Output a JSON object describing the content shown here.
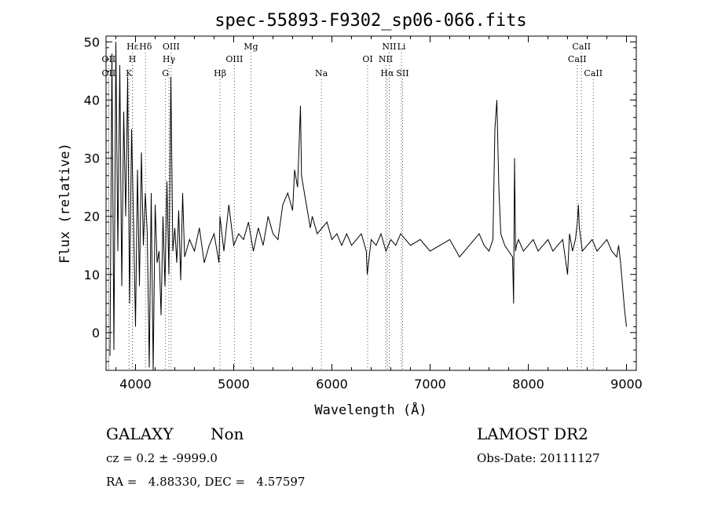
{
  "chart_data": {
    "type": "line",
    "title": "spec-55893-F9302_sp06-066.fits",
    "xlabel": "Wavelength (Å)",
    "ylabel": "Flux (relative)",
    "xlim": [
      3700,
      9100
    ],
    "ylim": [
      -6.5,
      51
    ],
    "x_ticks": [
      4000,
      5000,
      6000,
      7000,
      8000,
      9000
    ],
    "y_ticks": [
      0,
      10,
      20,
      30,
      40,
      50
    ],
    "grid": false,
    "line_color": "#000000",
    "marker_color": "#555555",
    "series": [
      {
        "x": [
          3740,
          3760,
          3780,
          3800,
          3820,
          3840,
          3860,
          3880,
          3900,
          3920,
          3940,
          3960,
          3980,
          4000,
          4020,
          4040,
          4060,
          4080,
          4100,
          4120,
          4140,
          4160,
          4180,
          4200,
          4220,
          4240,
          4260,
          4280,
          4300,
          4320,
          4340,
          4360,
          4380,
          4400,
          4420,
          4440,
          4460,
          4480,
          4500,
          4550,
          4600,
          4650,
          4700,
          4750,
          4800,
          4850,
          4860,
          4900,
          4950,
          5000,
          5050,
          5100,
          5150,
          5200,
          5250,
          5300,
          5350,
          5400,
          5450,
          5500,
          5550,
          5600,
          5620,
          5650,
          5680,
          5690,
          5700,
          5720,
          5750,
          5780,
          5800,
          5850,
          5900,
          5950,
          6000,
          6050,
          6100,
          6150,
          6200,
          6250,
          6300,
          6350,
          6360,
          6400,
          6450,
          6500,
          6550,
          6600,
          6650,
          6700,
          6750,
          6800,
          6900,
          7000,
          7100,
          7200,
          7300,
          7400,
          7500,
          7550,
          7600,
          7640,
          7660,
          7680,
          7700,
          7720,
          7740,
          7760,
          7800,
          7840,
          7850,
          7860,
          7870,
          7880,
          7900,
          7950,
          8000,
          8050,
          8100,
          8150,
          8200,
          8250,
          8300,
          8350,
          8400,
          8420,
          8450,
          8480,
          8500,
          8510,
          8520,
          8550,
          8600,
          8650,
          8700,
          8750,
          8800,
          8850,
          8900,
          8920,
          8940,
          8960,
          8980,
          9000
        ],
        "y": [
          -4,
          48,
          -3,
          50,
          14,
          46,
          8,
          38,
          20,
          44,
          5,
          35,
          19,
          1,
          28,
          8,
          31,
          15,
          24,
          17,
          -6,
          24,
          -7,
          22,
          12,
          14,
          3,
          20,
          8,
          26,
          10,
          44,
          14,
          18,
          12,
          21,
          9,
          24,
          13,
          16,
          14,
          18,
          12,
          15,
          17,
          12,
          20,
          14,
          22,
          15,
          17,
          16,
          19,
          14,
          18,
          15,
          20,
          17,
          16,
          22,
          24,
          21,
          28,
          25,
          39,
          27,
          26,
          24,
          21,
          18,
          20,
          17,
          18,
          19,
          16,
          17,
          15,
          17,
          15,
          16,
          17,
          14,
          10,
          16,
          15,
          17,
          14,
          16,
          15,
          17,
          16,
          15,
          16,
          14,
          15,
          16,
          13,
          15,
          17,
          15,
          14,
          16,
          35,
          40,
          25,
          17,
          16,
          15,
          14,
          13,
          5,
          30,
          14,
          15,
          16,
          14,
          15,
          16,
          14,
          15,
          16,
          14,
          15,
          16,
          10,
          17,
          14,
          16,
          19,
          22,
          18,
          14,
          15,
          16,
          14,
          15,
          16,
          14,
          13,
          15,
          12,
          8,
          4,
          1
        ]
      }
    ],
    "emission_lines": {
      "row1": [
        {
          "label": "Hε",
          "x": 3970
        },
        {
          "label": "Hδ",
          "x": 4102
        },
        {
          "label": "OIII",
          "x": 4363
        },
        {
          "label": "Mg",
          "x": 5175
        },
        {
          "label": "NII",
          "x": 6584
        },
        {
          "label": "Li",
          "x": 6708
        },
        {
          "label": "CaII",
          "x": 8542
        }
      ],
      "row2": [
        {
          "label": "OII",
          "x": 3727
        },
        {
          "label": "H",
          "x": 3968
        },
        {
          "label": "Hγ",
          "x": 4340
        },
        {
          "label": "OIII",
          "x": 5007
        },
        {
          "label": "OI",
          "x": 6364
        },
        {
          "label": "NII",
          "x": 6548
        },
        {
          "label": "CaII",
          "x": 8498
        }
      ],
      "row3": [
        {
          "label": "OII",
          "x": 3727
        },
        {
          "label": "K",
          "x": 3934
        },
        {
          "label": "G",
          "x": 4305
        },
        {
          "label": "Hβ",
          "x": 4861
        },
        {
          "label": "Na",
          "x": 5893
        },
        {
          "label": "Hα",
          "x": 6563
        },
        {
          "label": "SII",
          "x": 6720
        },
        {
          "label": "CaII",
          "x": 8662
        }
      ]
    }
  },
  "info": {
    "object_class": "GALAXY",
    "subclass": "Non",
    "survey": "LAMOST DR2",
    "cz_line": "cz = 0.2 ± -9999.0",
    "obs_date": "Obs-Date: 20111127",
    "coords": "RA =   4.88330, DEC =   4.57597"
  }
}
